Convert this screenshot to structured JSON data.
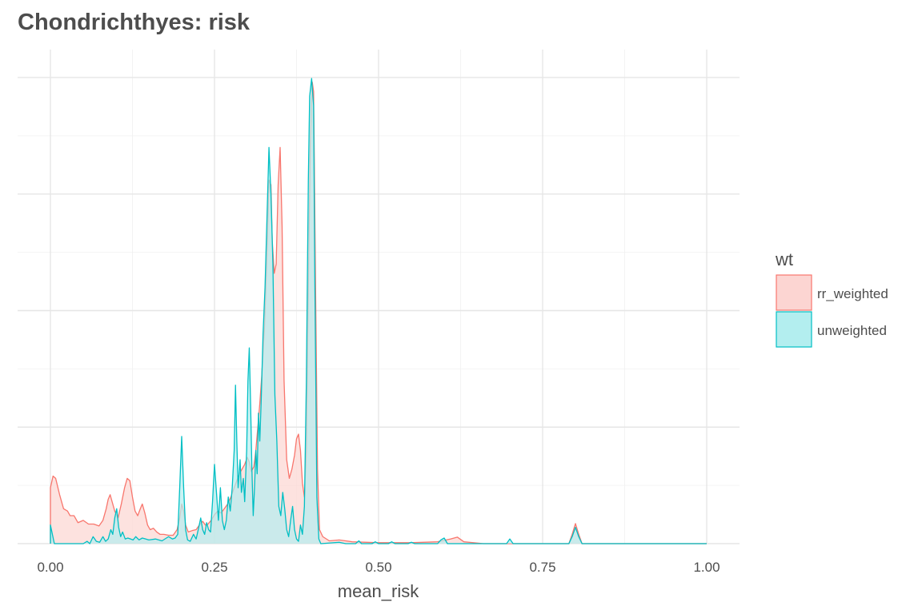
{
  "chart_data": {
    "type": "area",
    "title": "Chondrichthyes: risk",
    "xlabel": "mean_risk",
    "ylabel": "",
    "xlim": [
      -0.05,
      1.05
    ],
    "ylim": [
      0,
      1.06
    ],
    "x_ticks": [
      0,
      0.25,
      0.5,
      0.75,
      1.0
    ],
    "x_tick_labels": [
      "0.00",
      "0.25",
      "0.50",
      "0.75",
      "1.00"
    ],
    "y_gridlines": [
      0,
      0.25,
      0.5,
      0.75,
      1.0
    ],
    "y_tick_labels_shown": false,
    "grid": true,
    "legend": {
      "title": "wt",
      "position": "right"
    },
    "series": [
      {
        "name": "rr_weighted",
        "color": "#f8766d",
        "fill": "#fcd5d2",
        "points": [
          [
            0.0,
            0.0
          ],
          [
            0.0,
            0.12
          ],
          [
            0.004,
            0.145
          ],
          [
            0.008,
            0.14
          ],
          [
            0.014,
            0.105
          ],
          [
            0.02,
            0.075
          ],
          [
            0.026,
            0.07
          ],
          [
            0.03,
            0.06
          ],
          [
            0.036,
            0.06
          ],
          [
            0.042,
            0.045
          ],
          [
            0.05,
            0.05
          ],
          [
            0.058,
            0.042
          ],
          [
            0.066,
            0.042
          ],
          [
            0.074,
            0.038
          ],
          [
            0.08,
            0.05
          ],
          [
            0.085,
            0.075
          ],
          [
            0.088,
            0.095
          ],
          [
            0.091,
            0.105
          ],
          [
            0.094,
            0.09
          ],
          [
            0.098,
            0.07
          ],
          [
            0.103,
            0.055
          ],
          [
            0.108,
            0.085
          ],
          [
            0.113,
            0.12
          ],
          [
            0.117,
            0.14
          ],
          [
            0.121,
            0.135
          ],
          [
            0.125,
            0.1
          ],
          [
            0.129,
            0.07
          ],
          [
            0.133,
            0.06
          ],
          [
            0.137,
            0.075
          ],
          [
            0.14,
            0.085
          ],
          [
            0.144,
            0.065
          ],
          [
            0.148,
            0.04
          ],
          [
            0.152,
            0.03
          ],
          [
            0.157,
            0.033
          ],
          [
            0.162,
            0.025
          ],
          [
            0.167,
            0.02
          ],
          [
            0.173,
            0.02
          ],
          [
            0.18,
            0.018
          ],
          [
            0.187,
            0.018
          ],
          [
            0.193,
            0.03
          ],
          [
            0.197,
            0.055
          ],
          [
            0.2,
            0.085
          ],
          [
            0.203,
            0.07
          ],
          [
            0.206,
            0.04
          ],
          [
            0.21,
            0.025
          ],
          [
            0.216,
            0.028
          ],
          [
            0.222,
            0.03
          ],
          [
            0.227,
            0.04
          ],
          [
            0.232,
            0.048
          ],
          [
            0.236,
            0.04
          ],
          [
            0.24,
            0.042
          ],
          [
            0.245,
            0.05
          ],
          [
            0.25,
            0.062
          ],
          [
            0.255,
            0.07
          ],
          [
            0.26,
            0.066
          ],
          [
            0.265,
            0.075
          ],
          [
            0.27,
            0.085
          ],
          [
            0.275,
            0.1
          ],
          [
            0.28,
            0.12
          ],
          [
            0.284,
            0.135
          ],
          [
            0.288,
            0.15
          ],
          [
            0.292,
            0.16
          ],
          [
            0.296,
            0.17
          ],
          [
            0.3,
            0.185
          ],
          [
            0.303,
            0.175
          ],
          [
            0.306,
            0.155
          ],
          [
            0.31,
            0.165
          ],
          [
            0.313,
            0.2
          ],
          [
            0.316,
            0.25
          ],
          [
            0.319,
            0.3
          ],
          [
            0.322,
            0.36
          ],
          [
            0.326,
            0.46
          ],
          [
            0.33,
            0.62
          ],
          [
            0.333,
            0.78
          ],
          [
            0.336,
            0.77
          ],
          [
            0.338,
            0.65
          ],
          [
            0.341,
            0.58
          ],
          [
            0.344,
            0.6
          ],
          [
            0.347,
            0.77
          ],
          [
            0.35,
            0.85
          ],
          [
            0.353,
            0.68
          ],
          [
            0.356,
            0.35
          ],
          [
            0.36,
            0.18
          ],
          [
            0.364,
            0.14
          ],
          [
            0.368,
            0.16
          ],
          [
            0.372,
            0.19
          ],
          [
            0.375,
            0.225
          ],
          [
            0.378,
            0.235
          ],
          [
            0.381,
            0.2
          ],
          [
            0.384,
            0.13
          ],
          [
            0.387,
            0.1
          ],
          [
            0.39,
            0.2
          ],
          [
            0.393,
            0.55
          ],
          [
            0.396,
            0.86
          ],
          [
            0.399,
            0.99
          ],
          [
            0.401,
            0.97
          ],
          [
            0.404,
            0.55
          ],
          [
            0.407,
            0.16
          ],
          [
            0.41,
            0.03
          ],
          [
            0.415,
            0.015
          ],
          [
            0.425,
            0.006
          ],
          [
            0.44,
            0.008
          ],
          [
            0.46,
            0.004
          ],
          [
            0.5,
            0.002
          ],
          [
            0.55,
            0.002
          ],
          [
            0.59,
            0.004
          ],
          [
            0.61,
            0.01
          ],
          [
            0.62,
            0.014
          ],
          [
            0.63,
            0.004
          ],
          [
            0.66,
            0.0
          ],
          [
            0.79,
            0.0
          ],
          [
            0.795,
            0.02
          ],
          [
            0.8,
            0.043
          ],
          [
            0.805,
            0.02
          ],
          [
            0.81,
            0.0
          ],
          [
            1.0,
            0.0
          ]
        ]
      },
      {
        "name": "unweighted",
        "color": "#00bfc4",
        "fill": "#b3eeef",
        "points": [
          [
            0.0,
            0.0
          ],
          [
            0.0,
            0.04
          ],
          [
            0.003,
            0.02
          ],
          [
            0.006,
            0.0
          ],
          [
            0.05,
            0.0
          ],
          [
            0.056,
            0.005
          ],
          [
            0.06,
            0.0
          ],
          [
            0.065,
            0.015
          ],
          [
            0.07,
            0.005
          ],
          [
            0.075,
            0.003
          ],
          [
            0.08,
            0.015
          ],
          [
            0.084,
            0.005
          ],
          [
            0.088,
            0.01
          ],
          [
            0.092,
            0.03
          ],
          [
            0.095,
            0.02
          ],
          [
            0.098,
            0.055
          ],
          [
            0.101,
            0.075
          ],
          [
            0.104,
            0.035
          ],
          [
            0.107,
            0.015
          ],
          [
            0.11,
            0.025
          ],
          [
            0.114,
            0.01
          ],
          [
            0.118,
            0.012
          ],
          [
            0.122,
            0.01
          ],
          [
            0.126,
            0.008
          ],
          [
            0.13,
            0.015
          ],
          [
            0.135,
            0.008
          ],
          [
            0.14,
            0.012
          ],
          [
            0.145,
            0.01
          ],
          [
            0.15,
            0.008
          ],
          [
            0.16,
            0.01
          ],
          [
            0.17,
            0.006
          ],
          [
            0.18,
            0.015
          ],
          [
            0.186,
            0.01
          ],
          [
            0.19,
            0.012
          ],
          [
            0.194,
            0.02
          ],
          [
            0.197,
            0.12
          ],
          [
            0.2,
            0.23
          ],
          [
            0.203,
            0.12
          ],
          [
            0.206,
            0.03
          ],
          [
            0.209,
            0.008
          ],
          [
            0.213,
            0.005
          ],
          [
            0.218,
            0.02
          ],
          [
            0.222,
            0.01
          ],
          [
            0.226,
            0.035
          ],
          [
            0.229,
            0.055
          ],
          [
            0.232,
            0.03
          ],
          [
            0.235,
            0.02
          ],
          [
            0.238,
            0.045
          ],
          [
            0.241,
            0.03
          ],
          [
            0.244,
            0.025
          ],
          [
            0.247,
            0.09
          ],
          [
            0.25,
            0.17
          ],
          [
            0.253,
            0.11
          ],
          [
            0.256,
            0.05
          ],
          [
            0.259,
            0.12
          ],
          [
            0.262,
            0.05
          ],
          [
            0.265,
            0.03
          ],
          [
            0.268,
            0.05
          ],
          [
            0.271,
            0.1
          ],
          [
            0.274,
            0.07
          ],
          [
            0.277,
            0.12
          ],
          [
            0.28,
            0.2
          ],
          [
            0.282,
            0.34
          ],
          [
            0.284,
            0.22
          ],
          [
            0.286,
            0.12
          ],
          [
            0.289,
            0.18
          ],
          [
            0.291,
            0.11
          ],
          [
            0.294,
            0.14
          ],
          [
            0.296,
            0.09
          ],
          [
            0.299,
            0.2
          ],
          [
            0.301,
            0.35
          ],
          [
            0.303,
            0.42
          ],
          [
            0.305,
            0.3
          ],
          [
            0.307,
            0.16
          ],
          [
            0.309,
            0.06
          ],
          [
            0.311,
            0.12
          ],
          [
            0.313,
            0.2
          ],
          [
            0.315,
            0.15
          ],
          [
            0.317,
            0.28
          ],
          [
            0.319,
            0.22
          ],
          [
            0.321,
            0.3
          ],
          [
            0.324,
            0.45
          ],
          [
            0.327,
            0.55
          ],
          [
            0.33,
            0.7
          ],
          [
            0.333,
            0.85
          ],
          [
            0.336,
            0.75
          ],
          [
            0.339,
            0.6
          ],
          [
            0.342,
            0.32
          ],
          [
            0.345,
            0.22
          ],
          [
            0.348,
            0.08
          ],
          [
            0.351,
            0.06
          ],
          [
            0.354,
            0.11
          ],
          [
            0.357,
            0.075
          ],
          [
            0.36,
            0.03
          ],
          [
            0.363,
            0.015
          ],
          [
            0.366,
            0.05
          ],
          [
            0.369,
            0.08
          ],
          [
            0.372,
            0.03
          ],
          [
            0.375,
            0.01
          ],
          [
            0.378,
            0.005
          ],
          [
            0.381,
            0.04
          ],
          [
            0.384,
            0.02
          ],
          [
            0.387,
            0.08
          ],
          [
            0.39,
            0.35
          ],
          [
            0.393,
            0.78
          ],
          [
            0.395,
            0.96
          ],
          [
            0.398,
            0.998
          ],
          [
            0.401,
            0.94
          ],
          [
            0.403,
            0.55
          ],
          [
            0.406,
            0.1
          ],
          [
            0.409,
            0.01
          ],
          [
            0.412,
            0.0
          ],
          [
            0.44,
            0.003
          ],
          [
            0.45,
            0.0
          ],
          [
            0.465,
            0.0
          ],
          [
            0.47,
            0.006
          ],
          [
            0.474,
            0.0
          ],
          [
            0.49,
            0.0
          ],
          [
            0.495,
            0.004
          ],
          [
            0.5,
            0.0
          ],
          [
            0.515,
            0.0
          ],
          [
            0.52,
            0.004
          ],
          [
            0.525,
            0.0
          ],
          [
            0.545,
            0.0
          ],
          [
            0.55,
            0.003
          ],
          [
            0.555,
            0.0
          ],
          [
            0.59,
            0.0
          ],
          [
            0.595,
            0.008
          ],
          [
            0.6,
            0.012
          ],
          [
            0.605,
            0.0
          ],
          [
            0.695,
            0.0
          ],
          [
            0.7,
            0.01
          ],
          [
            0.705,
            0.0
          ],
          [
            0.79,
            0.0
          ],
          [
            0.795,
            0.015
          ],
          [
            0.8,
            0.035
          ],
          [
            0.805,
            0.015
          ],
          [
            0.81,
            0.0
          ],
          [
            1.0,
            0.0
          ]
        ]
      }
    ]
  }
}
